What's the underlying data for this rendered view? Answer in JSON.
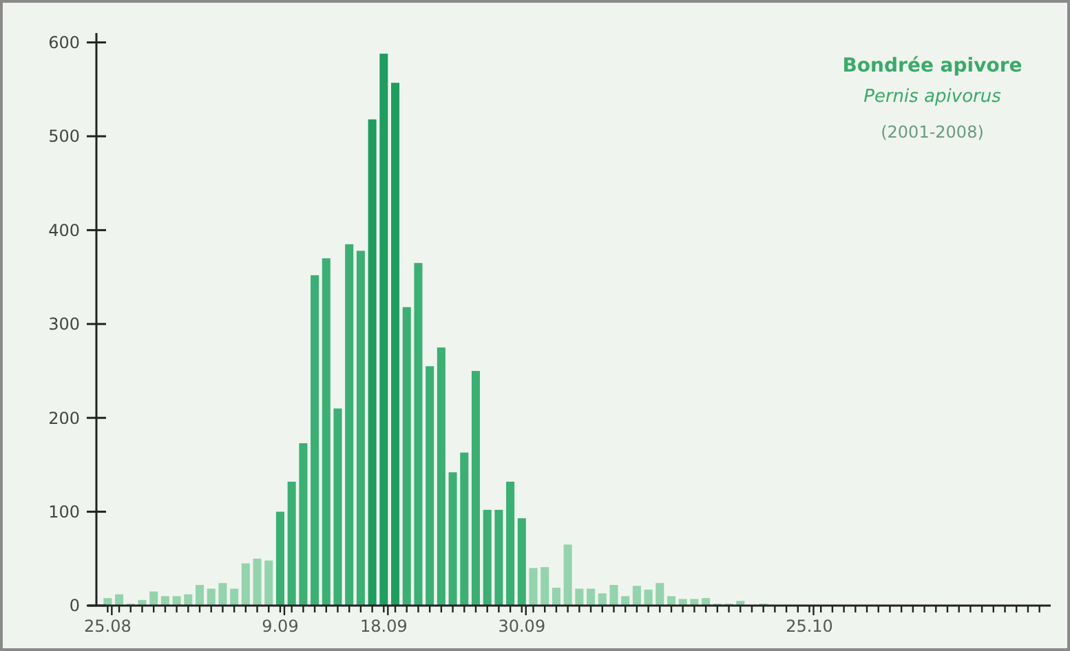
{
  "chart_data": {
    "type": "bar",
    "title": "Bondrée apivore",
    "subtitle": "Pernis apivorus",
    "annotations": [
      "(2001-2008)"
    ],
    "categories": [
      "25.08",
      null,
      null,
      null,
      null,
      null,
      null,
      null,
      null,
      null,
      null,
      null,
      null,
      null,
      null,
      "9.09",
      null,
      null,
      null,
      null,
      null,
      null,
      null,
      null,
      "18.09",
      null,
      null,
      null,
      null,
      null,
      null,
      null,
      null,
      null,
      null,
      null,
      "30.09",
      null,
      null,
      null,
      null,
      null,
      null,
      null,
      null,
      null,
      null,
      null,
      null,
      null,
      null,
      null,
      null,
      null,
      null,
      null,
      null,
      null,
      null,
      null,
      null,
      "25.10",
      null,
      null,
      null,
      null,
      null,
      null,
      null,
      null,
      null,
      null,
      null,
      null,
      null,
      null,
      null,
      null,
      null,
      null,
      null,
      null
    ],
    "values": [
      8,
      12,
      2,
      6,
      15,
      10,
      10,
      12,
      22,
      18,
      24,
      18,
      45,
      50,
      48,
      100,
      132,
      173,
      352,
      370,
      210,
      385,
      378,
      518,
      588,
      557,
      318,
      365,
      255,
      275,
      142,
      163,
      250,
      102,
      102,
      132,
      93,
      40,
      41,
      19,
      65,
      18,
      18,
      13,
      22,
      10,
      21,
      17,
      24,
      10,
      7,
      7,
      8,
      2,
      2,
      5,
      0,
      2,
      0,
      0,
      0,
      0,
      0,
      0,
      0,
      0,
      0,
      0,
      0,
      0,
      0,
      0,
      0,
      0,
      0,
      0,
      0,
      0,
      0,
      0,
      0,
      0
    ],
    "colors": [
      "#93d3ad",
      "#93d3ad",
      "#93d3ad",
      "#93d3ad",
      "#93d3ad",
      "#93d3ad",
      "#93d3ad",
      "#93d3ad",
      "#93d3ad",
      "#93d3ad",
      "#93d3ad",
      "#93d3ad",
      "#93d3ad",
      "#93d3ad",
      "#93d3ad",
      "#3caf74",
      "#3caf74",
      "#3caf74",
      "#3caf74",
      "#3caf74",
      "#3caf74",
      "#3caf74",
      "#3caf74",
      "#1f9c5f",
      "#1f9c5f",
      "#1f9c5f",
      "#3caf74",
      "#3caf74",
      "#3caf74",
      "#3caf74",
      "#3caf74",
      "#3caf74",
      "#3caf74",
      "#3caf74",
      "#3caf74",
      "#3caf74",
      "#3caf74",
      "#93d3ad",
      "#93d3ad",
      "#93d3ad",
      "#93d3ad",
      "#93d3ad",
      "#93d3ad",
      "#93d3ad",
      "#93d3ad",
      "#93d3ad",
      "#93d3ad",
      "#93d3ad",
      "#93d3ad",
      "#93d3ad",
      "#93d3ad",
      "#93d3ad",
      "#93d3ad",
      "#93d3ad",
      "#93d3ad",
      "#93d3ad",
      "#93d3ad",
      "#93d3ad",
      "#93d3ad",
      "#93d3ad",
      "#93d3ad",
      "#93d3ad",
      "#93d3ad",
      "#93d3ad",
      "#93d3ad",
      "#93d3ad",
      "#93d3ad",
      "#93d3ad",
      "#93d3ad",
      "#93d3ad",
      "#93d3ad",
      "#93d3ad",
      "#93d3ad",
      "#93d3ad",
      "#93d3ad",
      "#93d3ad",
      "#93d3ad",
      "#93d3ad",
      "#93d3ad",
      "#93d3ad",
      "#93d3ad",
      "#93d3ad"
    ],
    "ylim": [
      0,
      610
    ],
    "yticks": [
      0,
      100,
      200,
      300,
      400,
      500,
      600
    ]
  }
}
